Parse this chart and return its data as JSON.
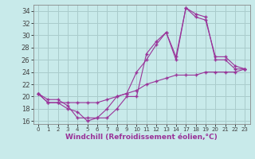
{
  "background_color": "#c8eaea",
  "grid_color": "#aacccc",
  "line_color": "#993399",
  "marker_color": "#993399",
  "xlabel": "Windchill (Refroidissement éolien,°C)",
  "xlabel_fontsize": 6.5,
  "xlim": [
    -0.5,
    23.5
  ],
  "ylim": [
    15.5,
    35.0
  ],
  "xticks": [
    0,
    1,
    2,
    3,
    4,
    5,
    6,
    7,
    8,
    9,
    10,
    11,
    12,
    13,
    14,
    17,
    18,
    19,
    20,
    21,
    22,
    23
  ],
  "yticks": [
    16,
    18,
    20,
    22,
    24,
    26,
    28,
    30,
    32,
    34
  ],
  "series1_x": [
    0,
    1,
    2,
    3,
    4,
    5,
    6,
    7,
    8,
    9,
    10,
    11,
    12,
    13,
    14,
    17,
    18,
    19,
    20,
    21,
    22,
    23
  ],
  "series1_y": [
    20.5,
    19.5,
    19.5,
    18.5,
    16.5,
    16.5,
    16.5,
    18.0,
    20.0,
    20.5,
    24.0,
    26.0,
    28.5,
    30.5,
    26.5,
    34.5,
    33.5,
    33.0,
    26.0,
    26.0,
    24.5,
    24.5
  ],
  "series2_x": [
    0,
    1,
    2,
    3,
    4,
    5,
    6,
    7,
    8,
    9,
    10,
    11,
    12,
    13,
    14,
    17,
    18,
    19,
    20,
    21,
    22,
    23
  ],
  "series2_y": [
    20.5,
    19.0,
    19.0,
    18.0,
    17.5,
    16.0,
    16.5,
    16.5,
    18.0,
    20.0,
    20.0,
    27.0,
    29.0,
    30.5,
    26.0,
    34.5,
    33.0,
    32.5,
    26.5,
    26.5,
    25.0,
    24.5
  ],
  "series3_x": [
    0,
    1,
    2,
    3,
    4,
    5,
    6,
    7,
    8,
    9,
    10,
    11,
    12,
    13,
    14,
    17,
    18,
    19,
    20,
    21,
    22,
    23
  ],
  "series3_y": [
    20.5,
    19.0,
    19.0,
    19.0,
    19.0,
    19.0,
    19.0,
    19.5,
    20.0,
    20.5,
    21.0,
    22.0,
    22.5,
    23.0,
    23.5,
    23.5,
    23.5,
    24.0,
    24.0,
    24.0,
    24.0,
    24.5
  ]
}
